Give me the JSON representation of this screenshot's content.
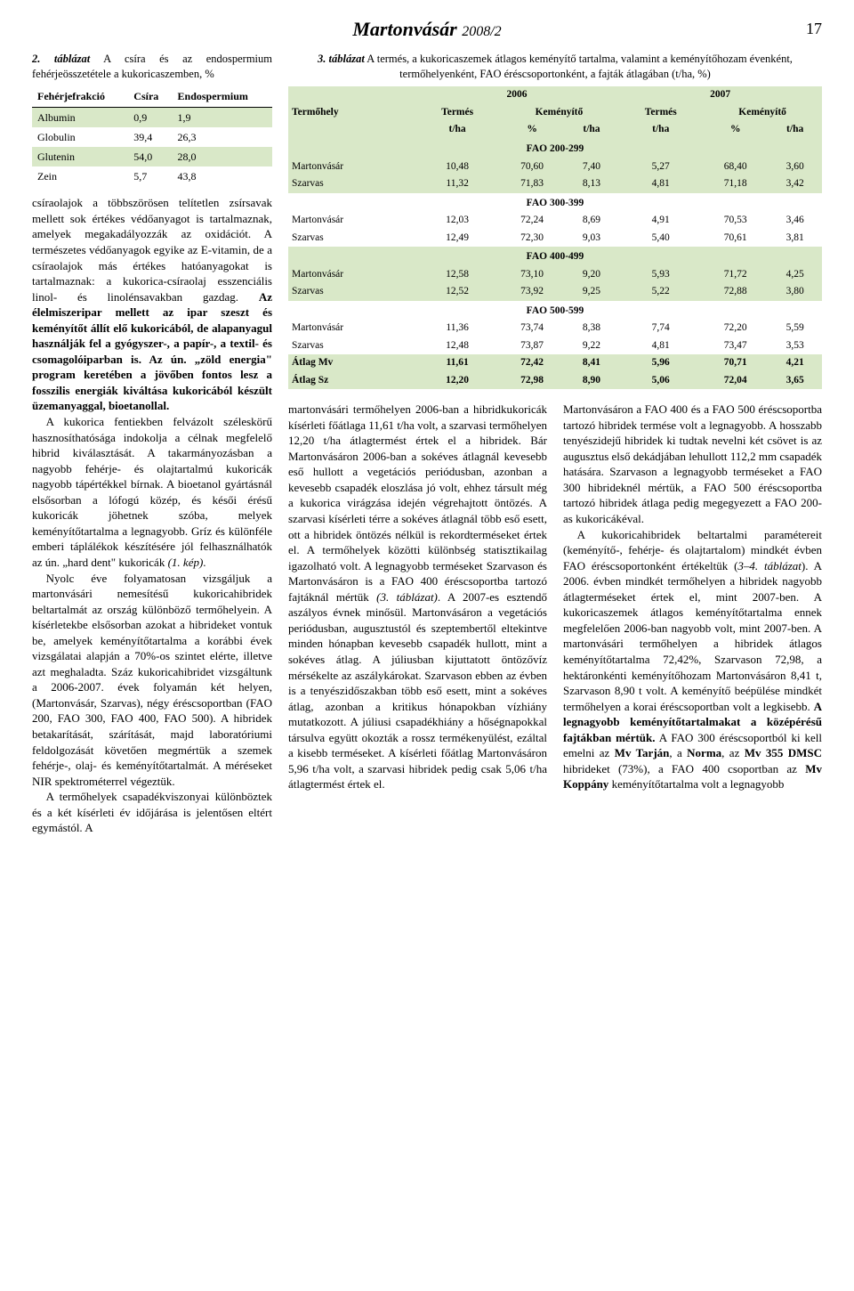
{
  "journal": {
    "title": "Martonvásár",
    "year": "2008/2",
    "page": "17"
  },
  "table2": {
    "caption_prefix": "2. táblázat",
    "caption": " A csíra és az endospermium fehérjeösszetétele a kukoricaszemben, %",
    "headers": [
      "Fehérjefrakció",
      "Csíra",
      "Endospermium"
    ],
    "rows": [
      {
        "cells": [
          "Albumin",
          "0,9",
          "1,9"
        ],
        "shade": true
      },
      {
        "cells": [
          "Globulin",
          "39,4",
          "26,3"
        ],
        "shade": false
      },
      {
        "cells": [
          "Glutenin",
          "54,0",
          "28,0"
        ],
        "shade": true
      },
      {
        "cells": [
          "Zein",
          "5,7",
          "43,8"
        ],
        "shade": false
      }
    ]
  },
  "left_body": "csíraolajok a többszörösen telítetlen zsírsavak mellett sok értékes védőanyagot is tartalmaznak, amelyek megakadályozzák az oxidációt. A természetes védőanyagok egyike az E-vitamin, de a csíraolajok más értékes hatóanyagokat is tartalmaznak: a kukorica-csíraolaj esszenciális linol- és linolénsavakban gazdag. <b>Az élelmiszeripar mellett az ipar szeszt és keményítőt állít elő kukoricából, de alapanyagul használják fel a gyógyszer-, a papír-, a textil- és csomagolóiparban is. Az ún. „zöld energia\" program keretében a jövőben fontos lesz a fosszilis energiák kiváltása kukoricából készült üzemanyaggal, bioetanollal.</b>",
  "left_body_p2": "A kukorica fentiekben felvázolt széleskörű hasznosíthatósága indokolja a célnak megfelelő hibrid kiválasztását. A takarmányozásban a nagyobb fehérje- és olajtartalmú kukoricák nagyobb tápértékkel bírnak. A bioetanol gyártásnál elsősorban a lófogú közép, és késői érésű kukoricák jöhetnek szóba, melyek keményítőtartalma a legnagyobb. Gríz és különféle emberi táplálékok készítésére jól felhasználhatók az ún. „hard dent\" kukoricák <i>(1. kép)</i>.",
  "left_body_p3": "Nyolc éve folyamatosan vizsgáljuk a martonvásári nemesítésű kukoricahibridek beltartalmát az ország különböző termőhelyein. A kísérletekbe elsősorban azokat a hibrideket vontuk be, amelyek keményítőtartalma a korábbi évek vizsgálatai alapján a 70%-os szintet elérte, illetve azt meghaladta. Száz kukoricahibridet vizsgáltunk a 2006-2007. évek folyamán két helyen, (Martonvásár, Szarvas), négy éréscsoportban (FAO 200, FAO 300, FAO 400, FAO 500). A hibridek betakarítását, szárítását, majd laboratóriumi feldolgozását követően megmértük a szemek fehérje-, olaj- és keményítőtartalmát. A méréseket NIR spektrométerrel végeztük.",
  "left_body_p4": "A termőhelyek csapadékviszonyai különböztek és a két kísérleti év időjárása is jelentősen eltért egymástól. A",
  "table3": {
    "caption_prefix": "3. táblázat",
    "caption": " A termés, a kukoricaszemek átlagos keményítő tartalma, valamint a keményítőhozam évenként, termőhelyenként, FAO éréscsoportonként, a fajták átlagában (t/ha, %)",
    "year1": "2006",
    "year2": "2007",
    "col_labels": [
      "Termőhely",
      "Termés",
      "Keményítő",
      "Termés",
      "Keményítő"
    ],
    "sub_labels": [
      "",
      "t/ha",
      "%",
      "t/ha",
      "t/ha",
      "%",
      "t/ha"
    ],
    "sections": [
      {
        "label": "FAO 200-299",
        "rows": [
          [
            "Martonvásár",
            "10,48",
            "70,60",
            "7,40",
            "5,27",
            "68,40",
            "3,60"
          ],
          [
            "Szarvas",
            "11,32",
            "71,83",
            "8,13",
            "4,81",
            "71,18",
            "3,42"
          ]
        ]
      },
      {
        "label": "FAO 300-399",
        "rows": [
          [
            "Martonvásár",
            "12,03",
            "72,24",
            "8,69",
            "4,91",
            "70,53",
            "3,46"
          ],
          [
            "Szarvas",
            "12,49",
            "72,30",
            "9,03",
            "5,40",
            "70,61",
            "3,81"
          ]
        ]
      },
      {
        "label": "FAO 400-499",
        "rows": [
          [
            "Martonvásár",
            "12,58",
            "73,10",
            "9,20",
            "5,93",
            "71,72",
            "4,25"
          ],
          [
            "Szarvas",
            "12,52",
            "73,92",
            "9,25",
            "5,22",
            "72,88",
            "3,80"
          ]
        ]
      },
      {
        "label": "FAO 500-599",
        "rows": [
          [
            "Martonvásár",
            "11,36",
            "73,74",
            "8,38",
            "7,74",
            "72,20",
            "5,59"
          ],
          [
            "Szarvas",
            "12,48",
            "73,87",
            "9,22",
            "4,81",
            "73,47",
            "3,53"
          ]
        ]
      }
    ],
    "summary": [
      [
        "Átlag Mv",
        "11,61",
        "72,42",
        "8,41",
        "5,96",
        "70,71",
        "4,21"
      ],
      [
        "Átlag Sz",
        "12,20",
        "72,98",
        "8,90",
        "5,06",
        "72,04",
        "3,65"
      ]
    ]
  },
  "lower_col1": "martonvásári termőhelyen 2006-ban a hibridkukoricák kísérleti főátlaga 11,61 t/ha volt, a szarvasi termőhelyen 12,20 t/ha átlagtermést értek el a hibridek. Bár Martonvásáron 2006-ban a sokéves átlagnál kevesebb eső hullott a vegetációs periódusban, azonban a kevesebb csapadék eloszlása jó volt, ehhez társult még a kukorica virágzása idején végrehajtott öntözés. A szarvasi kísérleti térre a sokéves átlagnál több eső esett, ott a hibridek öntözés nélkül is rekordterméseket értek el. A termőhelyek közötti különbség statisztikailag igazolható volt. A legnagyobb terméseket Szarvason és Martonvásáron is a FAO 400 éréscsoportba tartozó fajtáknál mértük <i>(3. táblázat)</i>. A 2007-es esztendő aszályos évnek minősül. Martonvásáron a vegetációs periódusban, augusztustól és szeptembertől eltekintve minden hónapban kevesebb csapadék hullott, mint a sokéves átlag. A júliusban kijuttatott öntözővíz mérsékelte az aszálykárokat. Szarvason ebben az évben is a tenyészidőszakban több eső esett, mint a sokéves átlag, azonban a kritikus hónapokban vízhiány mutatkozott. A júliusi csapadékhiány a hőségnapokkal társulva együtt okozták a rossz termékenyülést, ezáltal a kisebb terméseket. A kísérleti főátlag Martonvásáron 5,96 t/ha volt, a szarvasi hibridek pedig csak 5,06 t/ha átlagtermést értek el.",
  "lower_col2": "Martonvásáron a FAO 400 és a FAO 500 éréscsoportba tartozó hibridek termése volt a legnagyobb. A hosszabb tenyészidejű hibridek ki tudtak nevelni két csövet is az augusztus első dekádjában lehullott 112,2 mm csapadék hatására. Szarvason a legnagyobb terméseket a FAO 300 hibrideknél mértük, a FAO 500 éréscsoportba tartozó hibridek átlaga pedig megegyezett a FAO 200-as kukoricákéval.",
  "lower_col2_p2": "A kukoricahibridek beltartalmi paramétereit (keményítő-, fehérje- és olajtartalom) mindkét évben FAO éréscsoportonként értékeltük (<i>3–4. táblázat</i>). A 2006. évben mindkét termőhelyen a hibridek nagyobb átlagterméseket értek el, mint 2007-ben. A kukoricaszemek átlagos keményítőtartalma ennek megfelelően 2006-ban nagyobb volt, mint 2007-ben. A martonvásári termőhelyen a hibridek átlagos keményítőtartalma 72,42%, Szarvason 72,98, a hektáronkénti keményítőhozam Martonvásáron 8,41 t, Szarvason 8,90 t volt. A keményítő beépülése mindkét termőhelyen a korai éréscsoportban volt a legkisebb. <b>A legnagyobb keményítőtartalmakat a középérésű fajtákban mértük.</b> A FAO 300 éréscsoportból ki kell emelni az <b>Mv Tarján</b>, a <b>Norma</b>, az <b>Mv 355 DMSC</b> hibrideket (73%), a FAO 400 csoportban az <b>Mv Koppány</b> keményítőtartalma volt a legnagyobb"
}
